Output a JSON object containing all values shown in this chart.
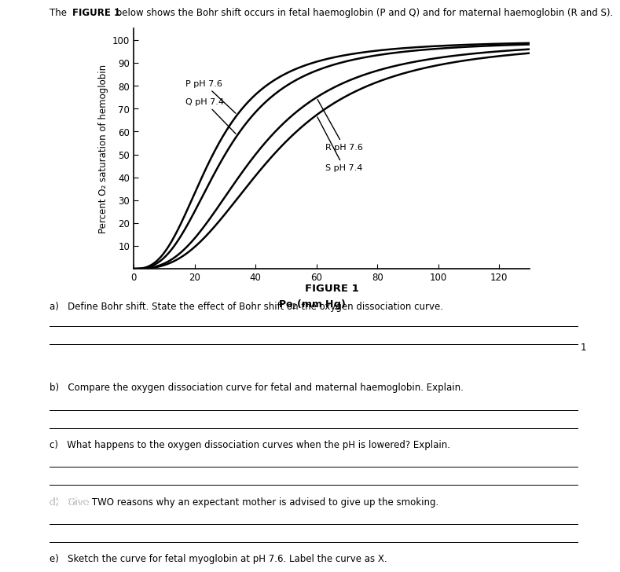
{
  "title_text": "The **FIGURE 1** below shows the Bohr shift occurs in fetal haemoglobin (P and Q) and for maternal haemoglobin (R and S).",
  "figure_title": "FIGURE 1",
  "ylabel": "Percent O₂ saturation of hemoglobin",
  "xlabel": "Po₂(mm Hg)",
  "xlim": [
    0,
    130
  ],
  "ylim": [
    0,
    105
  ],
  "xticks": [
    0,
    20,
    40,
    60,
    80,
    100,
    120
  ],
  "yticks": [
    10,
    20,
    30,
    40,
    50,
    60,
    70,
    80,
    90,
    100
  ],
  "curve_color": "#000000",
  "bg_color": "#ffffff",
  "label_P": "P pH 7.6",
  "label_Q": "Q pH 7.4",
  "label_R": "R pH 7.6",
  "label_S": "S pH 7.4",
  "question_a": "a)   Define Bohr shift. State the effect of Bohr shift on the oxygen dissociation curve.",
  "question_b": "b)   Compare the oxygen dissociation curve for fetal and maternal haemoglobin. Explain.",
  "question_c": "c)   What happens to the oxygen dissociation curves when the pH is lowered? Explain.",
  "question_d": "d)   Give TWO reasons why an expectant mother is advised to give up the smoking.",
  "question_e": "e)   Sketch the curve for fetal myoglobin at pH 7.6. Label the curve as X.",
  "mark_1": "1",
  "dark_bar_color": "#555555"
}
